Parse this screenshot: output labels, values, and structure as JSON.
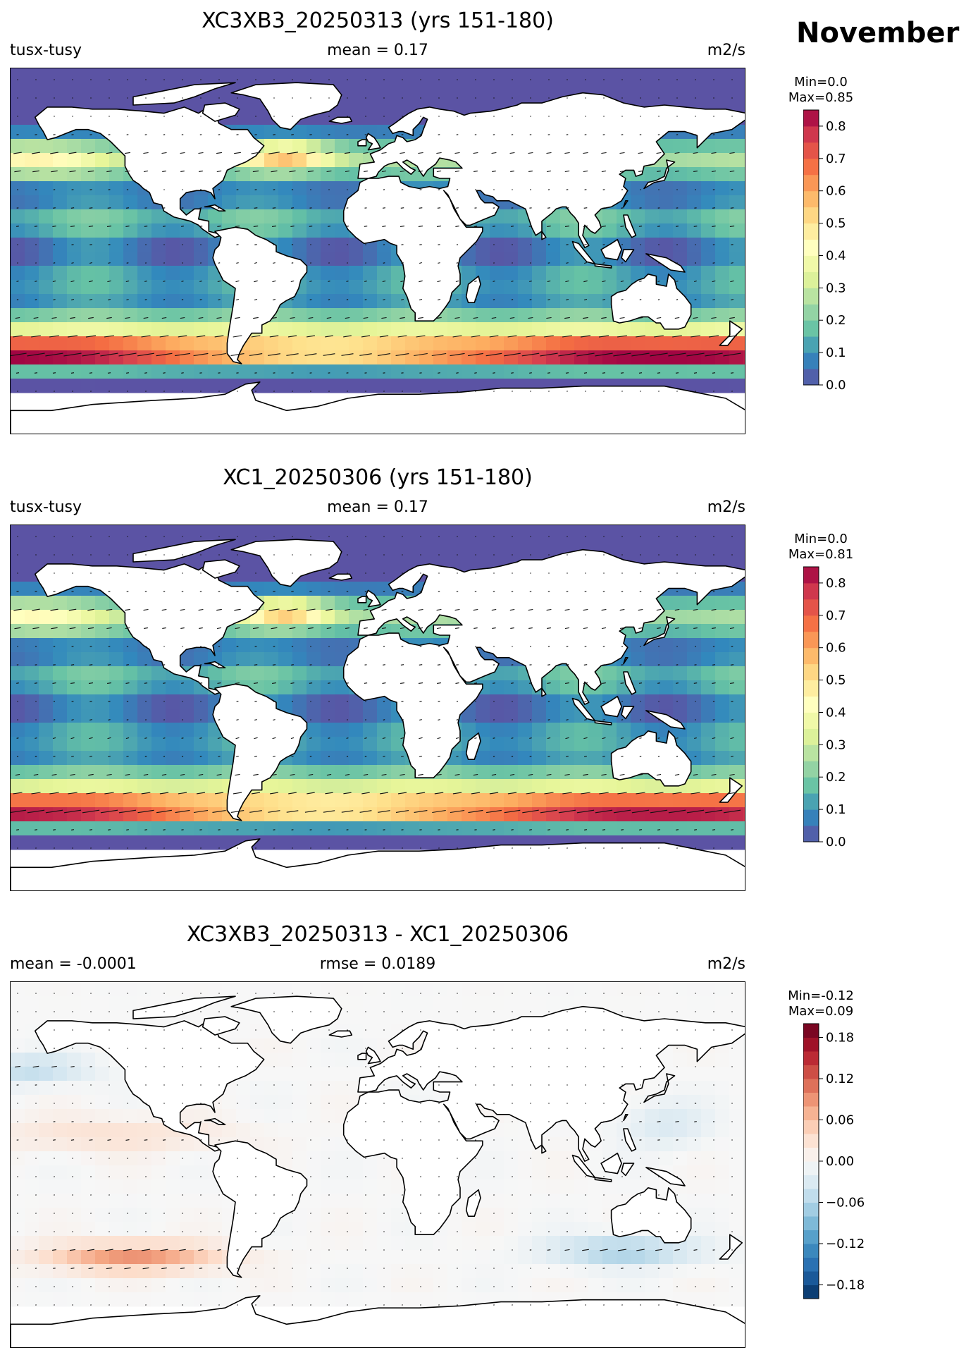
{
  "figure": {
    "month": "November"
  },
  "panels": [
    {
      "title": "XC3XB3_20250313 (yrs 151-180)",
      "left_label": "tusx-tusy",
      "center_label": "mean = 0.17",
      "right_label": "m2/s",
      "minmax": "Min=0.0\nMax=0.85",
      "colorbar_ticks": [
        "0.0",
        "0.1",
        "0.2",
        "0.3",
        "0.4",
        "0.5",
        "0.6",
        "0.7",
        "0.8"
      ]
    },
    {
      "title": "XC1_20250306 (yrs 151-180)",
      "left_label": "tusx-tusy",
      "center_label": "mean = 0.17",
      "right_label": "m2/s",
      "minmax": "Min=0.0\nMax=0.81",
      "colorbar_ticks": [
        "0.0",
        "0.1",
        "0.2",
        "0.3",
        "0.4",
        "0.5",
        "0.6",
        "0.7",
        "0.8"
      ]
    },
    {
      "title": "XC3XB3_20250313 - XC1_20250306",
      "left_label": "mean = -0.0001",
      "center_label": "rmse = 0.0189",
      "right_label": "m2/s",
      "minmax": "Min=-0.12\nMax=0.09",
      "colorbar_ticks": [
        "−0.18",
        "−0.12",
        "−0.06",
        "0.00",
        "0.06",
        "0.12",
        "0.18"
      ]
    }
  ],
  "chart_data": [
    {
      "type": "heatmap",
      "title": "XC3XB3_20250313 (yrs 151-180)",
      "variable": "tusx-tusy",
      "units": "m2/s",
      "mean": 0.17,
      "min": 0.0,
      "max": 0.85,
      "colorbar": {
        "cmap": "Spectral_r",
        "range": [
          0.0,
          0.85
        ],
        "ticks": [
          0.0,
          0.1,
          0.2,
          0.3,
          0.4,
          0.5,
          0.6,
          0.7,
          0.8
        ],
        "levels": 17
      },
      "features": [
        "vector arrows",
        "coastlines",
        "land masked white"
      ]
    },
    {
      "type": "heatmap",
      "title": "XC1_20250306 (yrs 151-180)",
      "variable": "tusx-tusy",
      "units": "m2/s",
      "mean": 0.17,
      "min": 0.0,
      "max": 0.81,
      "colorbar": {
        "cmap": "Spectral_r",
        "range": [
          0.0,
          0.85
        ],
        "ticks": [
          0.0,
          0.1,
          0.2,
          0.3,
          0.4,
          0.5,
          0.6,
          0.7,
          0.8
        ],
        "levels": 17
      },
      "features": [
        "vector arrows",
        "coastlines",
        "land masked white"
      ]
    },
    {
      "type": "heatmap",
      "title": "XC3XB3_20250313 - XC1_20250306",
      "units": "m2/s",
      "mean": -0.0001,
      "rmse": 0.0189,
      "min": -0.12,
      "max": 0.09,
      "colorbar": {
        "cmap": "RdBu_r",
        "range": [
          -0.2,
          0.2
        ],
        "ticks": [
          -0.18,
          -0.12,
          -0.06,
          0.0,
          0.06,
          0.12,
          0.18
        ],
        "levels": 20
      },
      "features": [
        "vector arrows",
        "coastlines",
        "land masked white"
      ]
    }
  ],
  "colors": {
    "spectral": [
      "#5e4fa2",
      "#3288bd",
      "#66c2a5",
      "#abdda4",
      "#e6f598",
      "#ffffbf",
      "#fee08b",
      "#fdae61",
      "#f46d43",
      "#d53e4f",
      "#9e0142"
    ],
    "diverging": [
      "#053061",
      "#2166ac",
      "#4393c3",
      "#92c5de",
      "#d1e5f0",
      "#f7f7f7",
      "#fddbc7",
      "#f4a582",
      "#d6604d",
      "#b2182b",
      "#67001f"
    ]
  }
}
